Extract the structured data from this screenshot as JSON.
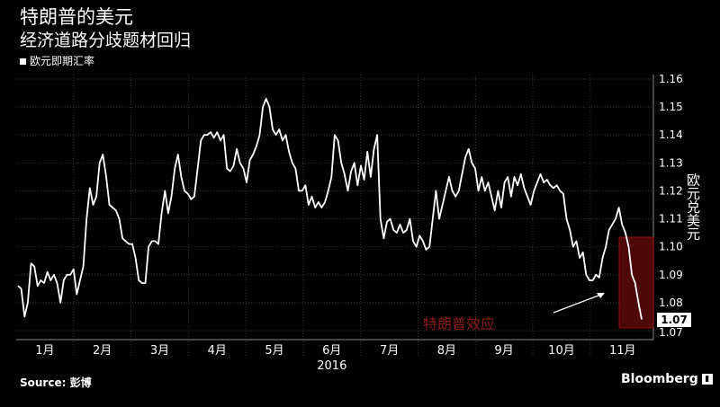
{
  "header": {
    "title": "特朗普的美元",
    "subtitle": "经济道路分歧题材回归",
    "legend_label": "欧元即期汇率"
  },
  "footer": {
    "source": "Source: 彭博",
    "brand": "Bloomberg"
  },
  "annotation": {
    "text": "特朗普效应",
    "color": "#8b1a1a",
    "highlight_color": "#5c0a0a"
  },
  "last_value_label": "1.07",
  "chart_data": {
    "type": "line",
    "ylabel": "欧元兑美元",
    "ylim": [
      1.07,
      1.16
    ],
    "yticks": [
      "1.07",
      "1.08",
      "1.09",
      "1.10",
      "1.11",
      "1.12",
      "1.13",
      "1.14",
      "1.15",
      "1.16"
    ],
    "month_labels": [
      "1月",
      "2月",
      "3月",
      "4月",
      "5月",
      "6月",
      "7月",
      "8月",
      "9月",
      "10月",
      "11月"
    ],
    "year_label": "2016",
    "grid": true,
    "series": [
      {
        "color": "#ffffff",
        "values": [
          1.086,
          1.085,
          1.075,
          1.08,
          1.094,
          1.093,
          1.086,
          1.088,
          1.087,
          1.091,
          1.088,
          1.09,
          1.087,
          1.08,
          1.088,
          1.09,
          1.09,
          1.092,
          1.083,
          1.088,
          1.093,
          1.11,
          1.121,
          1.115,
          1.118,
          1.13,
          1.133,
          1.125,
          1.115,
          1.114,
          1.113,
          1.11,
          1.103,
          1.102,
          1.101,
          1.101,
          1.096,
          1.088,
          1.087,
          1.087,
          1.1,
          1.102,
          1.102,
          1.101,
          1.112,
          1.12,
          1.112,
          1.118,
          1.128,
          1.133,
          1.125,
          1.12,
          1.119,
          1.117,
          1.118,
          1.128,
          1.138,
          1.14,
          1.14,
          1.141,
          1.139,
          1.141,
          1.138,
          1.14,
          1.128,
          1.127,
          1.129,
          1.135,
          1.13,
          1.128,
          1.123,
          1.131,
          1.133,
          1.136,
          1.14,
          1.15,
          1.153,
          1.15,
          1.142,
          1.14,
          1.142,
          1.138,
          1.14,
          1.134,
          1.13,
          1.128,
          1.12,
          1.12,
          1.122,
          1.115,
          1.118,
          1.114,
          1.116,
          1.114,
          1.116,
          1.12,
          1.125,
          1.14,
          1.138,
          1.13,
          1.126,
          1.12,
          1.127,
          1.13,
          1.122,
          1.129,
          1.124,
          1.134,
          1.125,
          1.135,
          1.14,
          1.11,
          1.103,
          1.109,
          1.11,
          1.106,
          1.105,
          1.108,
          1.105,
          1.106,
          1.11,
          1.102,
          1.1,
          1.104,
          1.102,
          1.099,
          1.1,
          1.11,
          1.12,
          1.11,
          1.115,
          1.12,
          1.125,
          1.12,
          1.118,
          1.12,
          1.126,
          1.132,
          1.135,
          1.13,
          1.128,
          1.12,
          1.125,
          1.12,
          1.123,
          1.118,
          1.113,
          1.12,
          1.114,
          1.123,
          1.125,
          1.118,
          1.125,
          1.122,
          1.126,
          1.121,
          1.118,
          1.115,
          1.12,
          1.123,
          1.126,
          1.123,
          1.124,
          1.122,
          1.121,
          1.122,
          1.12,
          1.119,
          1.11,
          1.106,
          1.1,
          1.102,
          1.096,
          1.098,
          1.09,
          1.088,
          1.088,
          1.09,
          1.089,
          1.096,
          1.1,
          1.106,
          1.108,
          1.11,
          1.114,
          1.108,
          1.105,
          1.1,
          1.09,
          1.087,
          1.08,
          1.074
        ]
      }
    ]
  }
}
